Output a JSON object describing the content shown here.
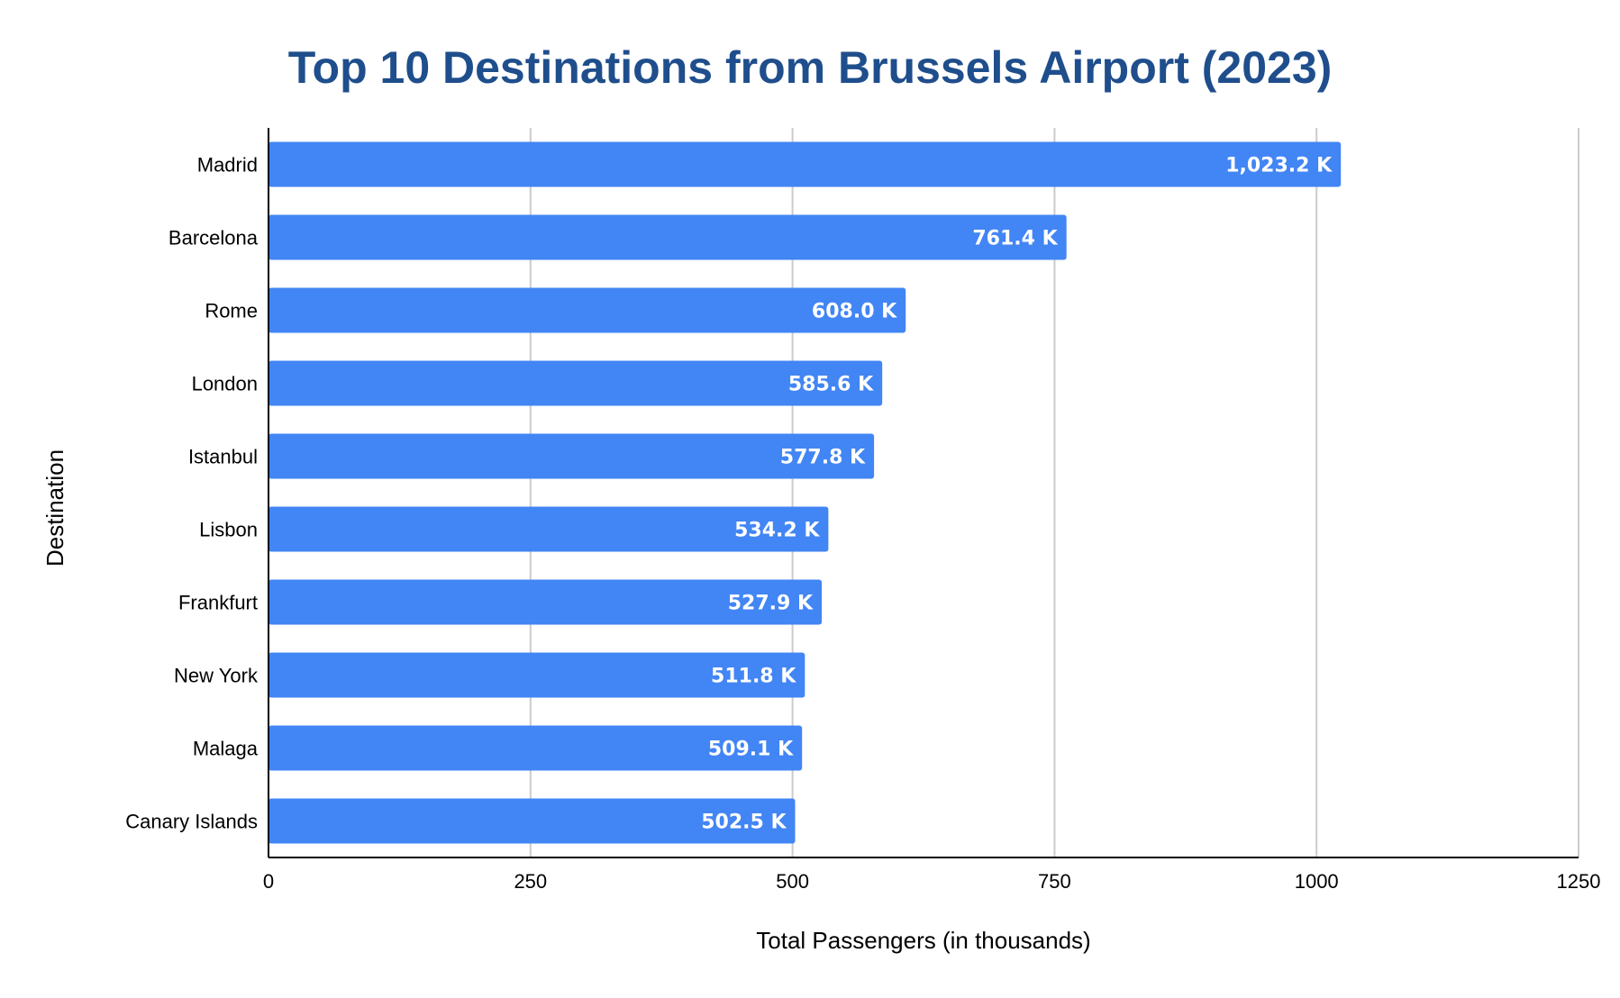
{
  "chart_data": {
    "type": "bar",
    "orientation": "horizontal",
    "title": "Top 10 Destinations from Brussels Airport (2023)",
    "xlabel": "Total Passengers (in thousands)",
    "ylabel": "Destination",
    "categories": [
      "Madrid",
      "Barcelona",
      "Rome",
      "London",
      "Istanbul",
      "Lisbon",
      "Frankfurt",
      "New York",
      "Malaga",
      "Canary Islands"
    ],
    "values": [
      1023.2,
      761.4,
      608.0,
      585.6,
      577.8,
      534.2,
      527.9,
      511.8,
      509.1,
      502.5
    ],
    "data_labels": [
      "1,023.2 K",
      "761.4 K",
      "608.0 K",
      "585.6 K",
      "577.8 K",
      "534.2 K",
      "527.9 K",
      "511.8 K",
      "509.1 K",
      "502.5 K"
    ],
    "xlim": [
      0,
      1250
    ],
    "xticks": [
      0,
      250,
      500,
      750,
      1000,
      1250
    ],
    "xtick_labels": [
      "0",
      "250",
      "500",
      "750",
      "1000",
      "1250"
    ],
    "grid": "vertical",
    "legend": "none",
    "colors": {
      "bar": "#4285f4",
      "title": "#1f4e8c",
      "grid": "#cccccc",
      "axis": "#000000",
      "data_label": "#ffffff"
    }
  }
}
